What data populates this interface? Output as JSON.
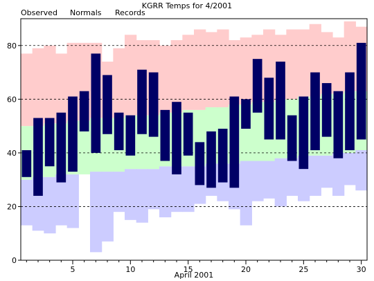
{
  "chart_data": {
    "type": "bar",
    "title": "KGRR Temps for 4/2001",
    "xlabel": "April 2001",
    "ylabel": "",
    "xlim": [
      0.5,
      30.5
    ],
    "ylim": [
      0,
      90
    ],
    "yticks": [
      0,
      20,
      40,
      60,
      80
    ],
    "xticks": [
      5,
      10,
      15,
      20,
      25,
      30
    ],
    "grid": "horizontal-dashed",
    "legend": "top-left",
    "days": [
      1,
      2,
      3,
      4,
      5,
      6,
      7,
      8,
      9,
      10,
      11,
      12,
      13,
      14,
      15,
      16,
      17,
      18,
      19,
      20,
      21,
      22,
      23,
      24,
      25,
      26,
      27,
      28,
      29,
      30
    ],
    "series": [
      {
        "name": "Observed",
        "color": "#000066",
        "high": [
          41,
          53,
          53,
          55,
          61,
          63,
          77,
          69,
          55,
          54,
          71,
          70,
          56,
          59,
          55,
          44,
          48,
          49,
          61,
          60,
          75,
          68,
          74,
          54,
          61,
          70,
          66,
          63,
          70,
          81
        ],
        "low": [
          31,
          24,
          35,
          29,
          33,
          48,
          40,
          47,
          41,
          39,
          47,
          46,
          37,
          32,
          39,
          28,
          27,
          29,
          27,
          49,
          55,
          45,
          45,
          37,
          34,
          41,
          46,
          38,
          41,
          45
        ]
      },
      {
        "name": "Normals",
        "color": "#006600",
        "fill": "#ccffcc",
        "high": [
          50,
          50,
          51,
          51,
          52,
          52,
          53,
          53,
          53,
          54,
          54,
          54,
          55,
          55,
          56,
          56,
          57,
          57,
          58,
          58,
          59,
          59,
          60,
          60,
          61,
          61,
          62,
          62,
          63,
          63
        ],
        "low": [
          30,
          31,
          31,
          32,
          32,
          32,
          33,
          33,
          33,
          34,
          34,
          34,
          35,
          35,
          35,
          35,
          36,
          36,
          36,
          37,
          37,
          37,
          38,
          38,
          39,
          39,
          39,
          40,
          40,
          41
        ]
      },
      {
        "name": "Records",
        "color": "#cc6699",
        "high_fill": "#ffcccc",
        "low_fill": "#ccccff",
        "high": [
          77,
          79,
          80,
          77,
          81,
          81,
          81,
          74,
          79,
          84,
          82,
          82,
          80,
          82,
          84,
          86,
          85,
          86,
          82,
          83,
          84,
          86,
          84,
          86,
          86,
          88,
          85,
          83,
          89,
          87
        ],
        "low": [
          13,
          11,
          10,
          13,
          12,
          33,
          3,
          7,
          18,
          15,
          14,
          19,
          16,
          18,
          18,
          21,
          24,
          22,
          19,
          13,
          22,
          23,
          20,
          24,
          22,
          24,
          27,
          24,
          28,
          26
        ]
      }
    ]
  }
}
